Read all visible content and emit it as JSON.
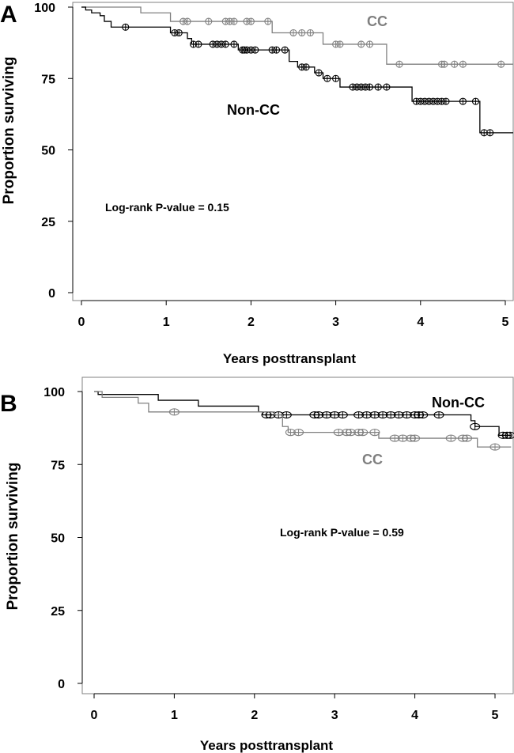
{
  "chart_data": [
    {
      "panel": "A",
      "type": "line",
      "xlabel": "Years posttransplant",
      "ylabel": "Proportion surviving",
      "xlim": [
        0,
        5
      ],
      "ylim": [
        0,
        100
      ],
      "xticks": [
        "0",
        "1",
        "2",
        "3",
        "4",
        "5"
      ],
      "yticks": [
        "0",
        "25",
        "50",
        "75",
        "100"
      ],
      "annotation": "Log-rank P-value = 0.15",
      "series": [
        {
          "name": "CC",
          "color": "#808080",
          "steps": [
            [
              0,
              100
            ],
            [
              0.7,
              98
            ],
            [
              1.05,
              95
            ],
            [
              2.25,
              91
            ],
            [
              2.85,
              87
            ],
            [
              3.6,
              80
            ],
            [
              5.1,
              80
            ]
          ],
          "censored": [
            1.2,
            1.25,
            1.5,
            1.7,
            1.75,
            1.8,
            1.95,
            2.0,
            2.2,
            2.5,
            2.6,
            2.7,
            3.0,
            3.05,
            3.3,
            3.4,
            3.75,
            4.25,
            4.28,
            4.4,
            4.5,
            4.95
          ]
        },
        {
          "name": "Non-CC",
          "color": "#000000",
          "steps": [
            [
              0,
              100
            ],
            [
              0.05,
              99
            ],
            [
              0.12,
              98
            ],
            [
              0.22,
              97
            ],
            [
              0.27,
              95
            ],
            [
              0.35,
              93
            ],
            [
              1.05,
              91
            ],
            [
              1.25,
              89
            ],
            [
              1.3,
              87
            ],
            [
              1.85,
              85
            ],
            [
              2.45,
              81
            ],
            [
              2.55,
              79
            ],
            [
              2.75,
              77
            ],
            [
              2.85,
              75
            ],
            [
              3.05,
              72
            ],
            [
              3.9,
              67
            ],
            [
              4.7,
              56
            ],
            [
              5.1,
              56
            ]
          ],
          "censored": [
            0.52,
            1.1,
            1.15,
            1.32,
            1.38,
            1.55,
            1.6,
            1.65,
            1.7,
            1.8,
            1.9,
            1.92,
            1.95,
            2.0,
            2.05,
            2.25,
            2.3,
            2.4,
            2.6,
            2.65,
            2.8,
            2.9,
            3.0,
            3.2,
            3.25,
            3.3,
            3.35,
            3.4,
            3.5,
            3.6,
            3.95,
            4.0,
            4.05,
            4.1,
            4.15,
            4.2,
            4.25,
            4.3,
            4.5,
            4.65,
            4.75,
            4.82
          ]
        }
      ]
    },
    {
      "panel": "B",
      "type": "line",
      "xlabel": "Years posttransplant",
      "ylabel": "Proportion surviving",
      "xlim": [
        0,
        5
      ],
      "ylim": [
        0,
        100
      ],
      "xticks": [
        "0",
        "1",
        "2",
        "3",
        "4",
        "5"
      ],
      "yticks": [
        "0",
        "25",
        "50",
        "75",
        "100"
      ],
      "annotation": "Log-rank  P-value = 0.59",
      "series": [
        {
          "name": "Non-CC",
          "color": "#000000",
          "steps": [
            [
              0,
              100
            ],
            [
              0.05,
              99
            ],
            [
              0.8,
              97
            ],
            [
              1.3,
              95
            ],
            [
              2.05,
              93
            ],
            [
              2.1,
              92
            ],
            [
              4.35,
              92
            ],
            [
              4.7,
              90
            ],
            [
              4.75,
              88
            ],
            [
              5.05,
              85
            ],
            [
              5.2,
              85
            ]
          ],
          "censored": [
            2.15,
            2.2,
            2.3,
            2.4,
            2.75,
            2.8,
            2.9,
            3.0,
            3.1,
            3.3,
            3.4,
            3.5,
            3.6,
            3.7,
            3.8,
            3.9,
            4.0,
            4.05,
            4.1,
            4.3,
            4.75,
            5.1,
            5.15,
            5.2
          ]
        },
        {
          "name": "CC",
          "color": "#808080",
          "steps": [
            [
              0,
              100
            ],
            [
              0.1,
              98
            ],
            [
              0.55,
              96
            ],
            [
              0.68,
              93
            ],
            [
              2.05,
              93
            ],
            [
              2.25,
              92
            ],
            [
              2.35,
              88
            ],
            [
              2.42,
              86
            ],
            [
              3.5,
              86
            ],
            [
              3.55,
              84
            ],
            [
              4.7,
              84
            ],
            [
              4.78,
              81
            ],
            [
              5.2,
              81
            ]
          ],
          "censored": [
            1.0,
            2.45,
            2.55,
            3.05,
            3.15,
            3.2,
            3.3,
            3.35,
            3.5,
            3.75,
            3.85,
            3.95,
            4.0,
            4.45,
            4.6,
            4.65,
            5.0
          ]
        }
      ]
    }
  ]
}
